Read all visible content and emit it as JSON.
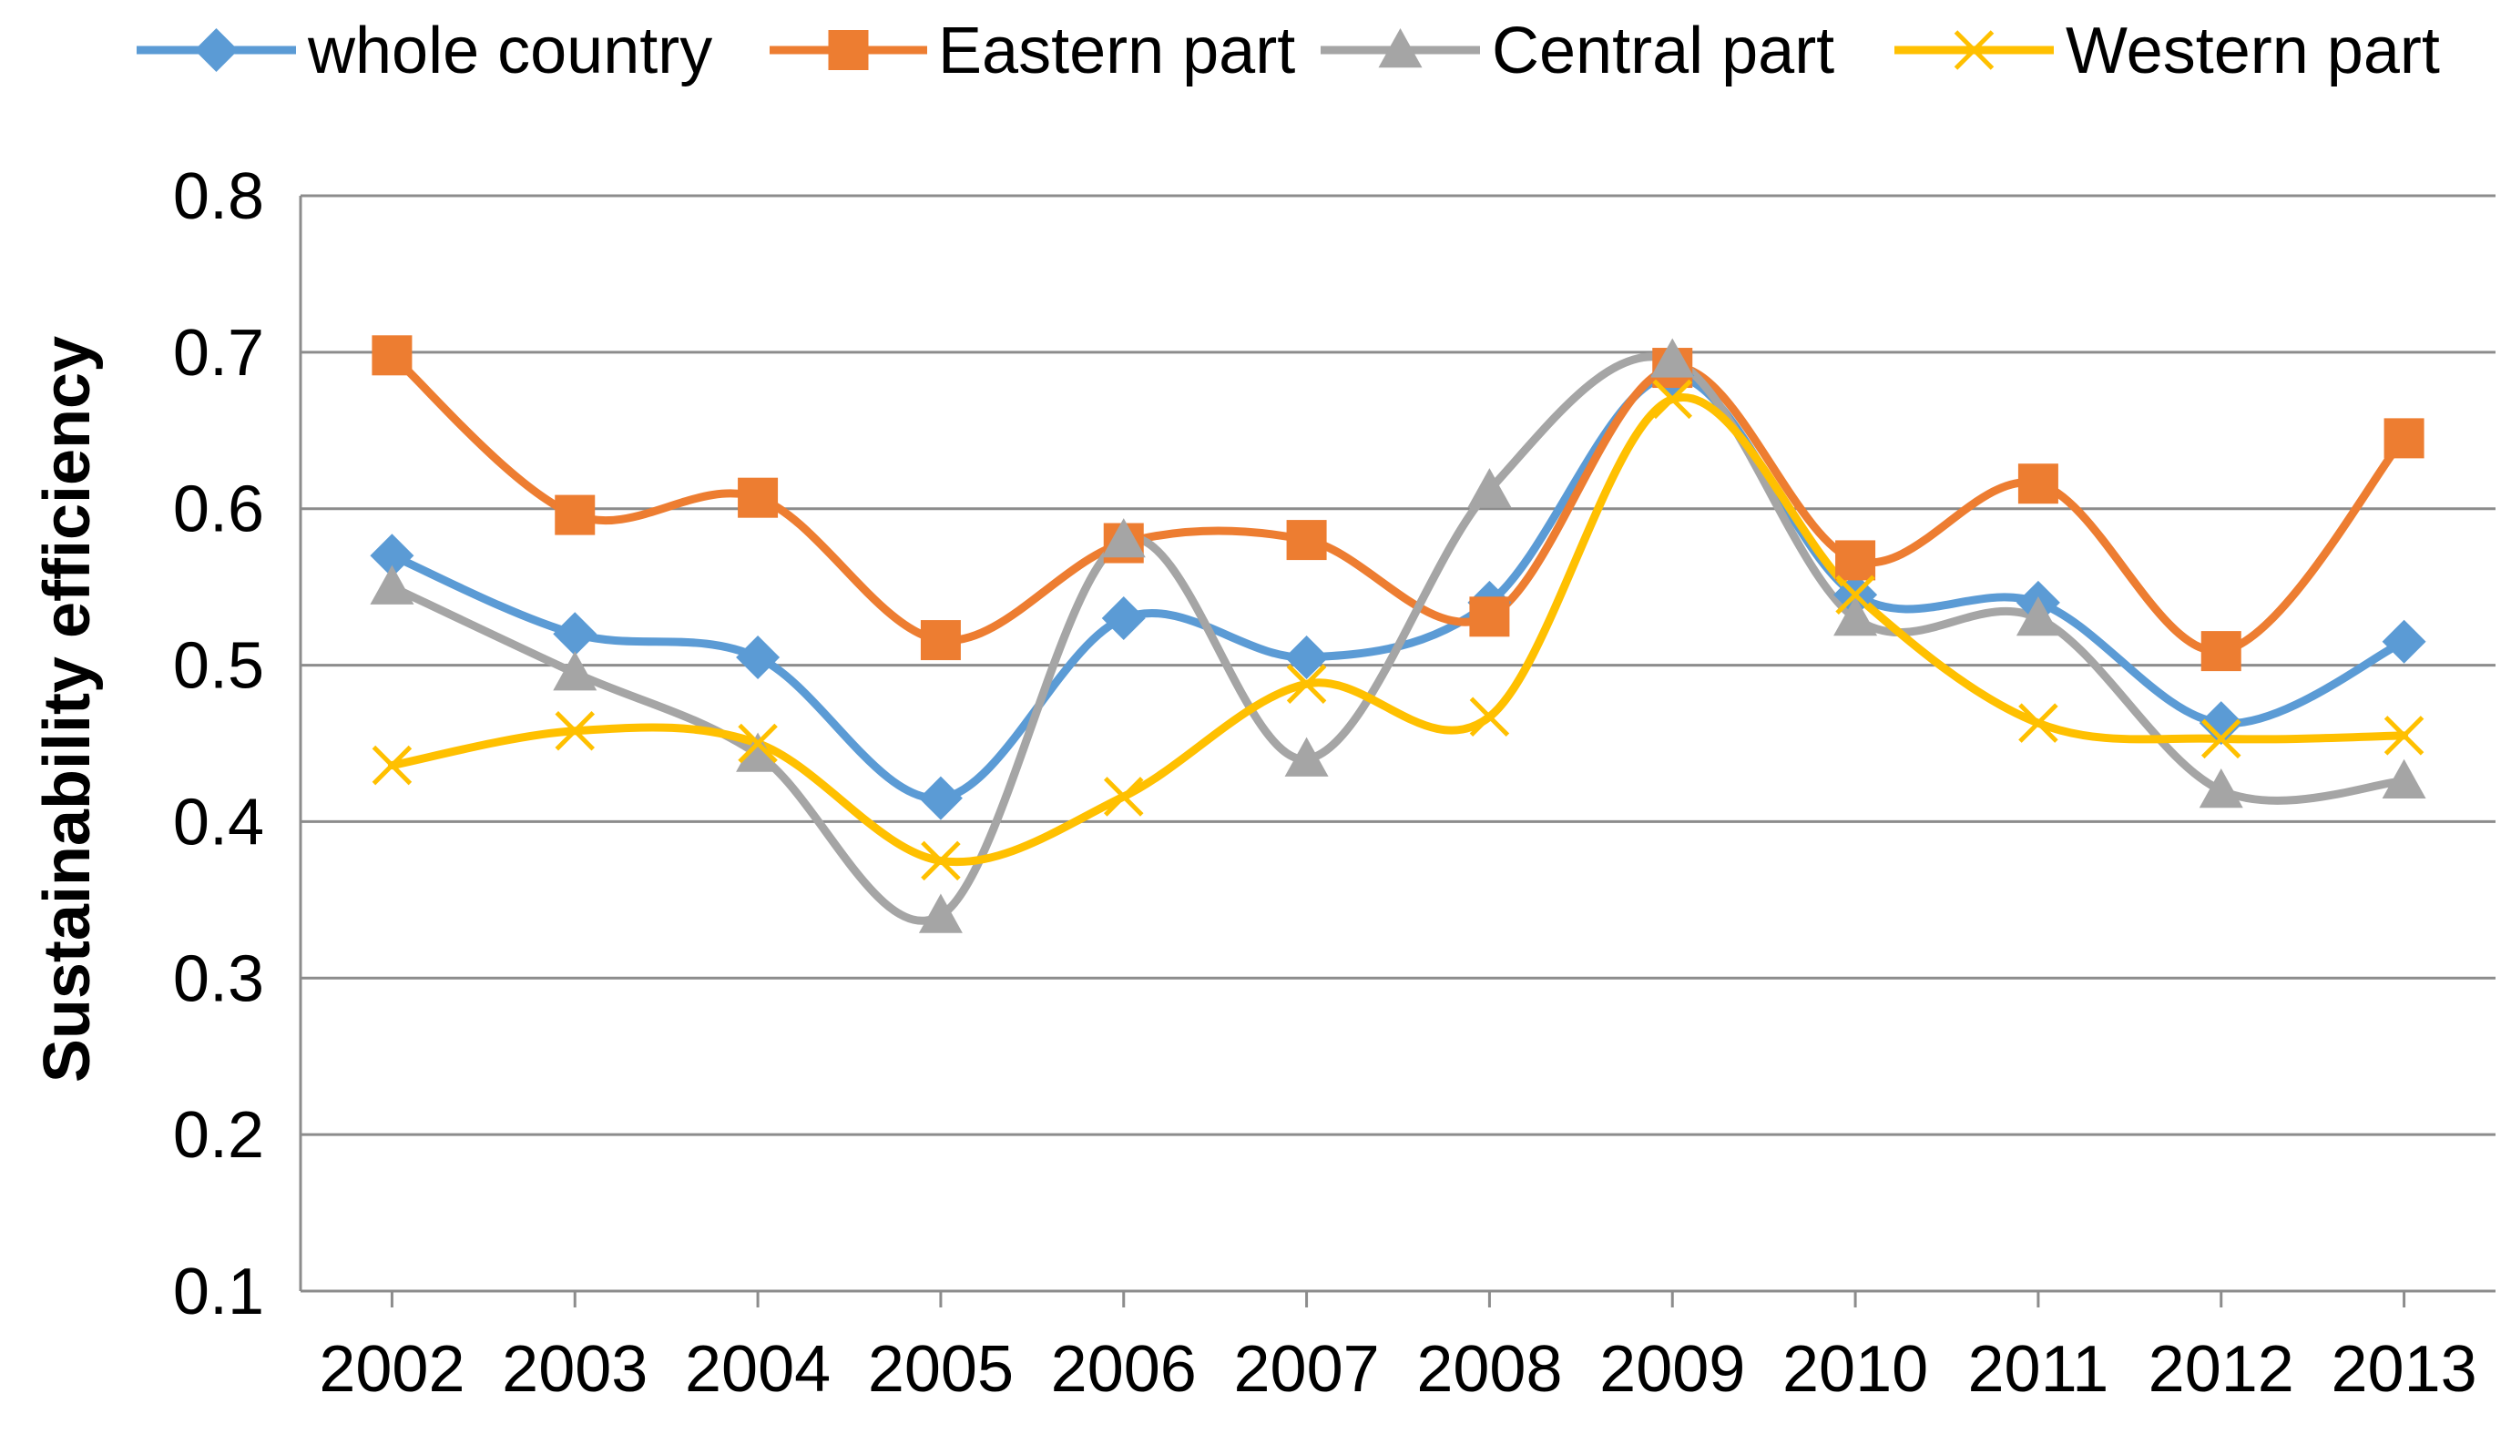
{
  "chart_data": {
    "type": "line",
    "title": "",
    "xlabel": "",
    "ylabel": "Sustainability efficiency",
    "categories": [
      "2002",
      "2003",
      "2004",
      "2005",
      "2006",
      "2007",
      "2008",
      "2009",
      "2010",
      "2011",
      "2012",
      "2013"
    ],
    "ylim": [
      0.1,
      0.8
    ],
    "yticks": [
      "0.1",
      "0.2",
      "0.3",
      "0.4",
      "0.5",
      "0.6",
      "0.7",
      "0.8"
    ],
    "ytick_values": [
      0.1,
      0.2,
      0.3,
      0.4,
      0.5,
      0.6,
      0.7,
      0.8
    ],
    "grid": true,
    "legend_position": "top",
    "series": [
      {
        "name": "whole country",
        "color": "#5B9BD5",
        "marker": "diamond",
        "values": [
          0.57,
          0.52,
          0.505,
          0.415,
          0.53,
          0.505,
          0.54,
          0.685,
          0.545,
          0.54,
          0.463,
          0.515
        ]
      },
      {
        "name": "Eastern part",
        "color": "#ED7D31",
        "marker": "square",
        "values": [
          0.698,
          0.596,
          0.607,
          0.516,
          0.578,
          0.58,
          0.531,
          0.69,
          0.567,
          0.616,
          0.509,
          0.645
        ]
      },
      {
        "name": "Central part",
        "color": "#A5A5A5",
        "marker": "triangle",
        "values": [
          0.55,
          0.495,
          0.443,
          0.34,
          0.58,
          0.44,
          0.612,
          0.695,
          0.53,
          0.53,
          0.42,
          0.426
        ]
      },
      {
        "name": "Western part",
        "color": "#FFC000",
        "marker": "x",
        "values": [
          0.436,
          0.458,
          0.45,
          0.375,
          0.416,
          0.488,
          0.467,
          0.67,
          0.545,
          0.463,
          0.453,
          0.455
        ]
      }
    ]
  }
}
